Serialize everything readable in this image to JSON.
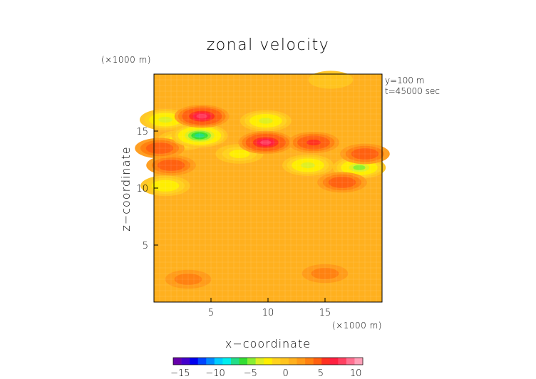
{
  "chart_data": {
    "type": "heatmap",
    "title": "zonal velocity",
    "xlabel": "x−coordinate",
    "ylabel": "z−coordinate",
    "xunit": "(×1000 m)",
    "yunit": "(×1000 m)",
    "annotations": [
      "y=100 m",
      "t=45000 sec"
    ],
    "xlim": [
      0,
      20
    ],
    "ylim": [
      0,
      20
    ],
    "xticks": [
      5,
      10,
      15
    ],
    "yticks": [
      5,
      10,
      15
    ],
    "grid": true,
    "colorbar": {
      "ticks": [
        -15,
        -10,
        -5,
        0,
        5,
        10
      ],
      "range": [
        -16,
        11
      ],
      "colors": [
        "#6600aa",
        "#4400cc",
        "#0000ee",
        "#0044ff",
        "#0088ff",
        "#00ccff",
        "#00eeee",
        "#22dd88",
        "#33dd33",
        "#88ee33",
        "#ddee22",
        "#ffee00",
        "#ffd21e",
        "#ffc41e",
        "#ffb01e",
        "#ff9a18",
        "#ff8010",
        "#ff6010",
        "#ff3020",
        "#ff2040",
        "#ff4060",
        "#ff7090",
        "#ffa0b8"
      ]
    },
    "background_value": 1,
    "features": [
      {
        "x": 4.2,
        "z": 16.3,
        "value": 8
      },
      {
        "x": 4.0,
        "z": 14.6,
        "value": -7
      },
      {
        "x": 2.5,
        "z": 14.2,
        "value": -3
      },
      {
        "x": 1.0,
        "z": 16.0,
        "value": -4
      },
      {
        "x": 9.8,
        "z": 14.0,
        "value": 8
      },
      {
        "x": 9.8,
        "z": 15.9,
        "value": -4
      },
      {
        "x": 13.5,
        "z": 12.0,
        "value": -4
      },
      {
        "x": 18.0,
        "z": 11.8,
        "value": -5
      },
      {
        "x": 1.5,
        "z": 12.0,
        "value": 5
      },
      {
        "x": 0.5,
        "z": 13.5,
        "value": 5
      },
      {
        "x": 14.0,
        "z": 14.0,
        "value": 6
      },
      {
        "x": 18.5,
        "z": 13.0,
        "value": 5
      },
      {
        "x": 7.5,
        "z": 13.0,
        "value": -2
      },
      {
        "x": 16.5,
        "z": 10.5,
        "value": 5
      },
      {
        "x": 1.0,
        "z": 10.2,
        "value": -3
      },
      {
        "x": 15.0,
        "z": 2.5,
        "value": 3
      },
      {
        "x": 3.0,
        "z": 2.0,
        "value": 3
      },
      {
        "x": 15.5,
        "z": 19.5,
        "value": 0
      }
    ]
  }
}
